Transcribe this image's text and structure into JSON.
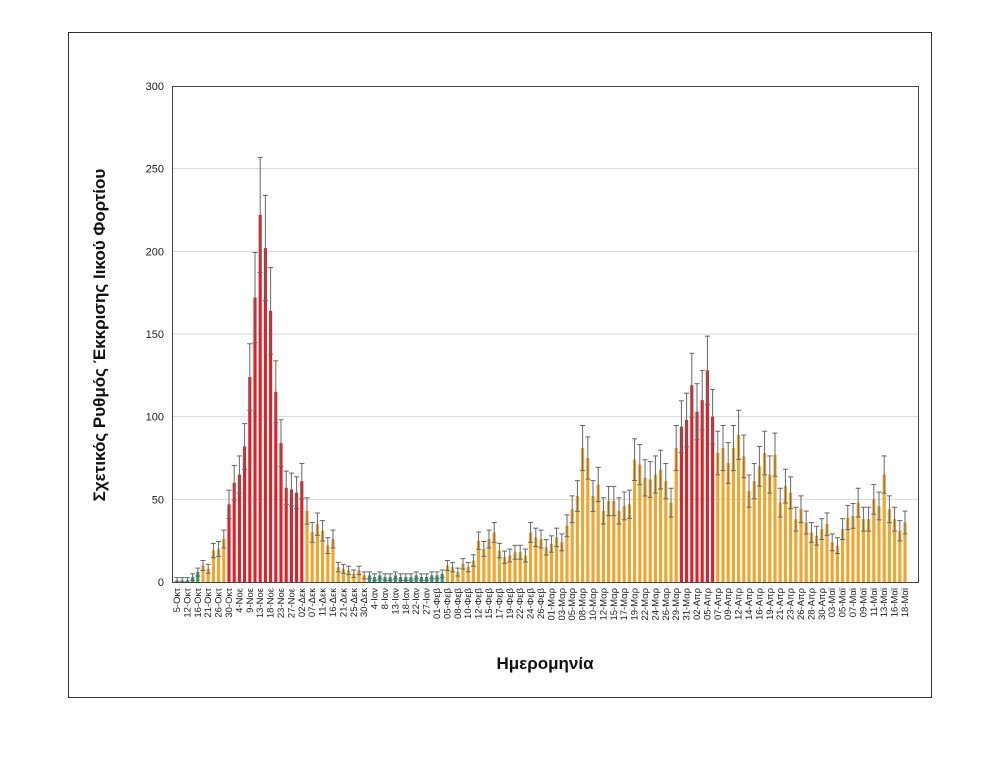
{
  "chart_data": {
    "type": "bar",
    "title": "",
    "xlabel": "Ημερομηνία",
    "ylabel": "Σχετικός Ρυθμός Έκκρισης Ιικού Φορτίου",
    "ylim": [
      0,
      300
    ],
    "yticks": [
      0,
      50,
      100,
      150,
      200,
      250,
      300
    ],
    "grid": true,
    "error_bars": true,
    "colors": {
      "green": "#2f9c6a",
      "orange": "#f2a52c",
      "red": "#df2127",
      "error": "#666666"
    },
    "x_tick_labels": [
      "5-Οκτ",
      "12-Οκτ",
      "16-Οκτ",
      "21-Οκτ",
      "26-Οκτ",
      "30-Οκτ",
      "4-Νοε",
      "9-Νοε",
      "13-Νοε",
      "18-Νοε",
      "23-Νοε",
      "27-Νοε",
      "02-Δεκ",
      "07-Δεκ",
      "11-Δεκ",
      "16-Δεκ",
      "21-Δεκ",
      "25-Δεκ",
      "30-Δεκ",
      "4-Ιαν",
      "8-Ιαν",
      "13-Ιαν",
      "18-Ιαν",
      "22-Ιαν",
      "27-Ιαν",
      "01-Φεβ",
      "05-Φεβ",
      "08-Φεβ",
      "10-Φεβ",
      "12-Φεβ",
      "15-Φεβ",
      "17-Φεβ",
      "19-Φεβ",
      "22-Φεβ",
      "24-Φεβ",
      "26-Φεβ",
      "01-Μαρ",
      "03-Μαρ",
      "05-Μαρ",
      "08-Μαρ",
      "10-Μαρ",
      "12-Μαρ",
      "15-Μαρ",
      "17-Μαρ",
      "19-Μαρ",
      "22-Μαρ",
      "24-Μαρ",
      "26-Μαρ",
      "29-Μαρ",
      "31-Μαρ",
      "02-Απρ",
      "05-Απρ",
      "07-Απρ",
      "09-Απρ",
      "12-Απρ",
      "14-Απρ",
      "16-Απρ",
      "19-Απρ",
      "21-Απρ",
      "23-Απρ",
      "26-Απρ",
      "28-Απρ",
      "30-Απρ",
      "03-Μαϊ",
      "05-Μαϊ",
      "07-Μαϊ",
      "09-Μαϊ",
      "11-Μαϊ",
      "13-Μαϊ",
      "16-Μαϊ",
      "18-Μαϊ"
    ],
    "segments": [
      {
        "color": "green",
        "values": [
          1,
          1,
          1,
          3,
          6
        ]
      },
      {
        "color": "orange",
        "values": [
          10,
          8,
          19,
          20,
          26
        ]
      },
      {
        "color": "red",
        "values": [
          47,
          60,
          65,
          82,
          124,
          172,
          222,
          202,
          164,
          115,
          84,
          57,
          56,
          54,
          61
        ]
      },
      {
        "color": "orange",
        "values": [
          43,
          30,
          35,
          31,
          22,
          26,
          9,
          8,
          7,
          5,
          7,
          4
        ]
      },
      {
        "color": "green",
        "values": [
          4,
          3,
          4,
          3,
          3,
          4,
          3,
          3,
          3,
          4,
          3,
          3,
          4,
          4,
          5
        ]
      },
      {
        "color": "orange",
        "values": [
          10,
          9,
          6,
          11,
          9,
          13,
          25,
          20,
          26,
          30,
          19,
          15,
          16,
          18,
          18,
          16,
          30,
          27,
          26,
          21,
          23,
          27,
          24,
          34,
          44,
          52,
          81,
          75,
          52,
          59,
          43,
          49,
          49,
          43,
          46,
          47,
          74,
          71,
          63,
          62,
          65,
          68,
          61,
          48,
          81
        ]
      },
      {
        "color": "red",
        "values": [
          94,
          98,
          119,
          103,
          110,
          128,
          100
        ]
      },
      {
        "color": "orange",
        "values": [
          78,
          81,
          72,
          81,
          89,
          76,
          55,
          61,
          70,
          78,
          65,
          77,
          48,
          58,
          54,
          38,
          44,
          36,
          30,
          28,
          32,
          35,
          24,
          22,
          32,
          39,
          40,
          48,
          38,
          38,
          50,
          46,
          65,
          44,
          38,
          31,
          36
        ]
      }
    ]
  }
}
